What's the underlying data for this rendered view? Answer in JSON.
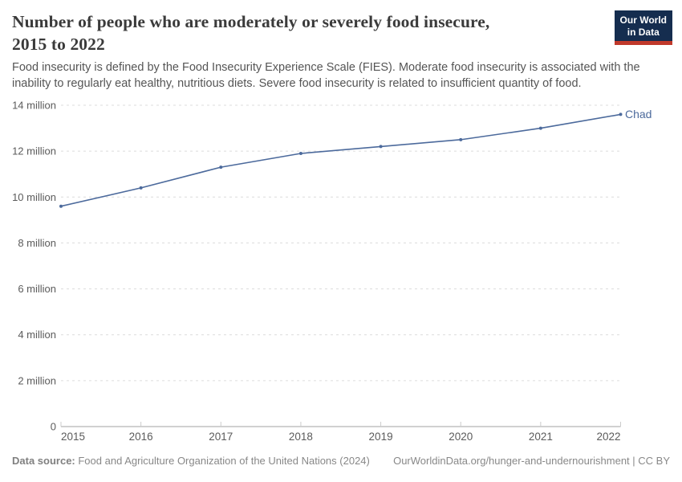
{
  "header": {
    "title_lines": [
      "Number of people who are moderately or severely food insecure,",
      "2015 to 2022"
    ],
    "logo": {
      "line1": "Our World",
      "line2": "in Data",
      "bg_color": "#152D4F",
      "accent_color": "#C0392B",
      "text_color": "#ffffff"
    }
  },
  "subtitle": "Food insecurity is defined by the Food Insecurity Experience Scale (FIES). Moderate food insecurity is associated with the inability to regularly eat healthy, nutritious diets. Severe food insecurity is related to insufficient quantity of food.",
  "chart_data": {
    "type": "line",
    "title": "Number of people who are moderately or severely food insecure, 2015 to 2022",
    "x": [
      2015,
      2016,
      2017,
      2018,
      2019,
      2020,
      2021,
      2022
    ],
    "x_tick_labels": [
      "2015",
      "2016",
      "2017",
      "2018",
      "2019",
      "2020",
      "2021",
      "2022"
    ],
    "series": [
      {
        "name": "Chad",
        "values_millions": [
          9.6,
          10.4,
          11.3,
          11.9,
          12.2,
          12.5,
          13.0,
          13.6
        ],
        "color": "#4C6A9C"
      }
    ],
    "unit": "million",
    "ylim": [
      0,
      14
    ],
    "y_ticks": [
      {
        "value": 0,
        "label": "0"
      },
      {
        "value": 2,
        "label": "2 million"
      },
      {
        "value": 4,
        "label": "4 million"
      },
      {
        "value": 6,
        "label": "6 million"
      },
      {
        "value": 8,
        "label": "8 million"
      },
      {
        "value": 10,
        "label": "10 million"
      },
      {
        "value": 12,
        "label": "12 million"
      },
      {
        "value": 14,
        "label": "14 million"
      }
    ],
    "grid": "horizontal-dashed",
    "legend": "end-of-line-label",
    "colors": {
      "line": "#4C6A9C",
      "gridline": "#dcdcdc",
      "axis_line": "#a3a3a3",
      "tick_text": "#5b5b5b"
    }
  },
  "footer": {
    "data_source_label": "Data source:",
    "data_source_value": " Food and Agriculture Organization of the United Nations (2024)",
    "link_text": "OurWorldinData.org/hunger-and-undernourishment | CC BY"
  }
}
